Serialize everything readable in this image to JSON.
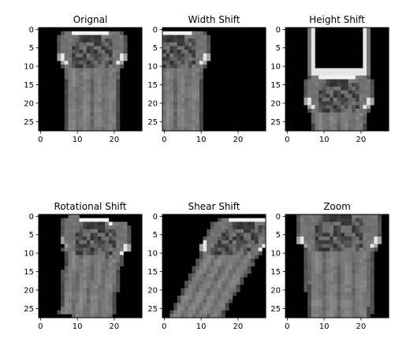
{
  "chart_data": [
    {
      "type": "image",
      "title": "Orignal",
      "xticks": [
        0,
        10,
        20
      ],
      "yticks": [
        0,
        5,
        10,
        15,
        20,
        25
      ],
      "xlim": [
        -0.5,
        27.5
      ],
      "ylim": [
        27.5,
        -0.5
      ],
      "colormap": "gray",
      "transform": "none"
    },
    {
      "type": "image",
      "title": "Width Shift",
      "xticks": [
        0,
        10,
        20
      ],
      "yticks": [
        0,
        5,
        10,
        15,
        20,
        25
      ],
      "xlim": [
        -0.5,
        27.5
      ],
      "ylim": [
        27.5,
        -0.5
      ],
      "colormap": "gray",
      "transform": "shift-left"
    },
    {
      "type": "image",
      "title": "Height Shift",
      "xticks": [
        0,
        10,
        20
      ],
      "yticks": [
        0,
        5,
        10,
        15,
        20,
        25
      ],
      "xlim": [
        -0.5,
        27.5
      ],
      "ylim": [
        27.5,
        -0.5
      ],
      "colormap": "gray",
      "transform": "shift-down"
    },
    {
      "type": "image",
      "title": "Rotational Shift",
      "xticks": [
        0,
        10,
        20
      ],
      "yticks": [
        0,
        5,
        10,
        15,
        20,
        25
      ],
      "xlim": [
        -0.5,
        27.5
      ],
      "ylim": [
        27.5,
        -0.5
      ],
      "colormap": "gray",
      "transform": "rotate"
    },
    {
      "type": "image",
      "title": "Shear Shift",
      "xticks": [
        0,
        10,
        20
      ],
      "yticks": [
        0,
        5,
        10,
        15,
        20,
        25
      ],
      "xlim": [
        -0.5,
        27.5
      ],
      "ylim": [
        27.5,
        -0.5
      ],
      "colormap": "gray",
      "transform": "shear"
    },
    {
      "type": "image",
      "title": "Zoom",
      "xticks": [
        0,
        10,
        20
      ],
      "yticks": [
        0,
        5,
        10,
        15,
        20,
        25
      ],
      "xlim": [
        -0.5,
        27.5
      ],
      "ylim": [
        27.5,
        -0.5
      ],
      "colormap": "gray",
      "transform": "zoom"
    }
  ]
}
